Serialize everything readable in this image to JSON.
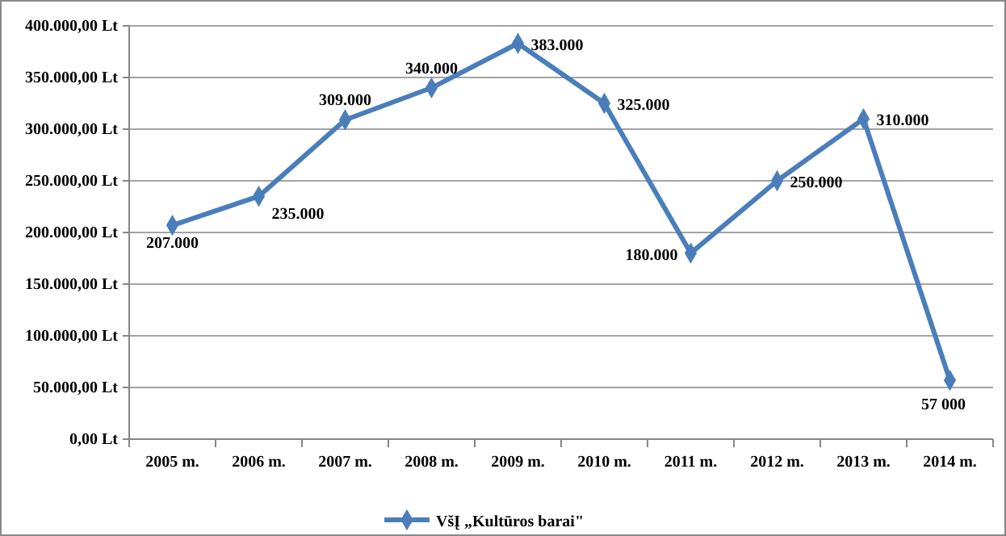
{
  "chart_data": {
    "type": "line",
    "categories": [
      "2005 m.",
      "2006 m.",
      "2007 m.",
      "2008 m.",
      "2009 m.",
      "2010 m.",
      "2011 m.",
      "2012 m.",
      "2013 m.",
      "2014 m."
    ],
    "series": [
      {
        "name": "VšĮ „Kultūros barai\"",
        "color": "#4a7ebb",
        "values": [
          207000,
          235000,
          309000,
          340000,
          383000,
          325000,
          180000,
          250000,
          310000,
          57000
        ],
        "value_labels": [
          "207.000",
          "235.000",
          "309.000",
          "340.000",
          "383.000",
          "325.000",
          "180.000",
          "250.000",
          "310.000",
          "57 000"
        ]
      }
    ],
    "ylim": [
      0,
      400000
    ],
    "yticks": [
      {
        "value": 0,
        "label": "0,00 Lt"
      },
      {
        "value": 50000,
        "label": "50.000,00 Lt"
      },
      {
        "value": 100000,
        "label": "100.000,00 Lt"
      },
      {
        "value": 150000,
        "label": "150.000,00 Lt"
      },
      {
        "value": 200000,
        "label": "200.000,00 Lt"
      },
      {
        "value": 250000,
        "label": "250.000,00 Lt"
      },
      {
        "value": 300000,
        "label": "300.000,00 Lt"
      },
      {
        "value": 350000,
        "label": "350.000,00 Lt"
      },
      {
        "value": 400000,
        "label": "400.000,00 Lt"
      }
    ],
    "grid": "y",
    "legend": "bottom",
    "marker": "diamond",
    "line_style": "solid"
  }
}
